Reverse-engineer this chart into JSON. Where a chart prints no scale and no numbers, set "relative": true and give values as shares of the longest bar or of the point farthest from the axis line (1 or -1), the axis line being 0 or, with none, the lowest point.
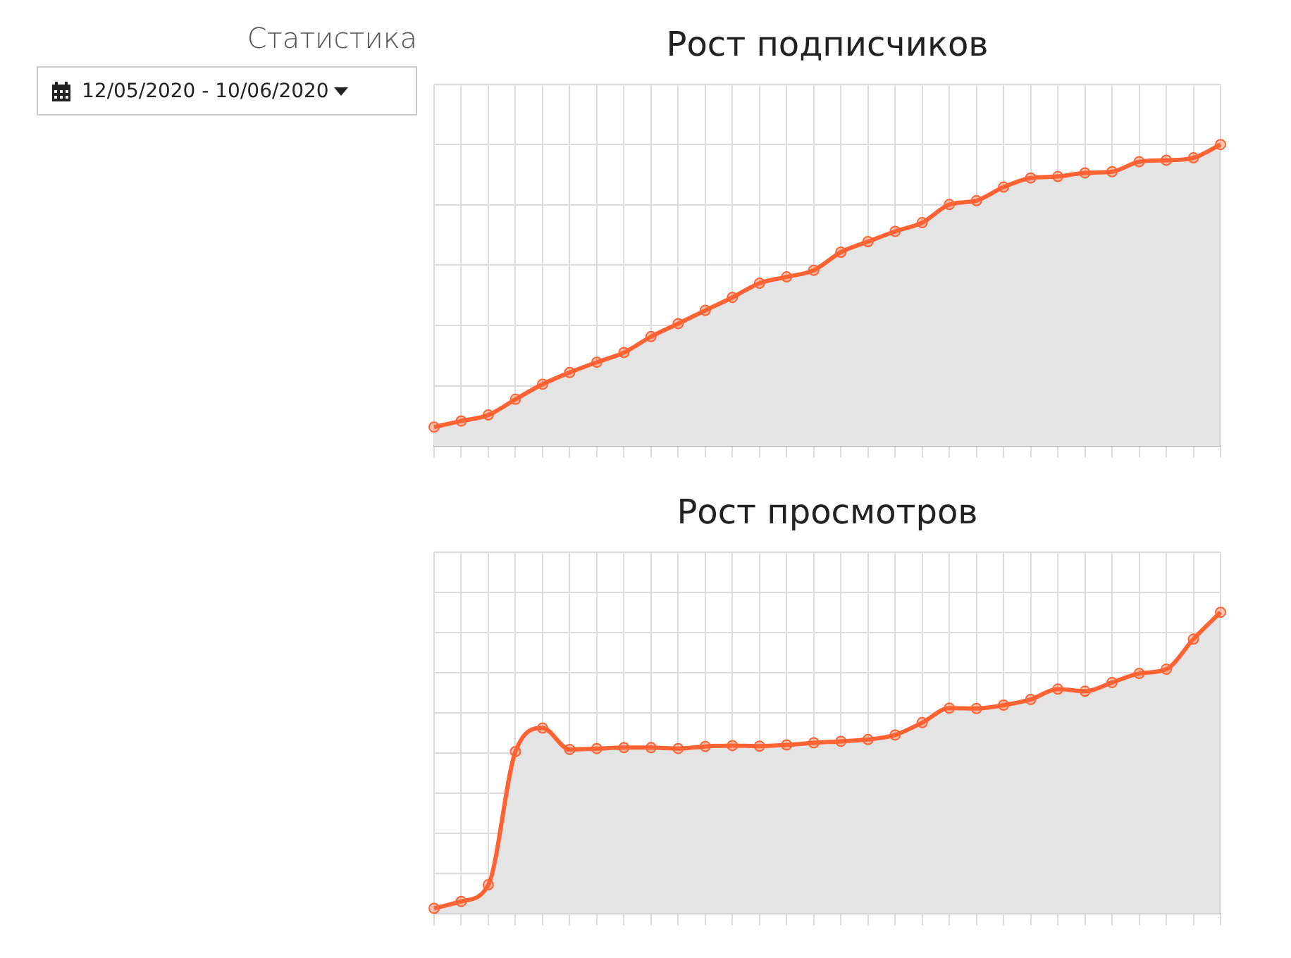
{
  "chart_data": [
    {
      "type": "other",
      "title": "Статистика",
      "annotations": [
        "12/05/2020 - 10/06/2020"
      ]
    },
    {
      "type": "area",
      "title": "Рост подписчиков",
      "relative": true,
      "grid": true,
      "marker": "circle",
      "legend": false,
      "categories": [
        null,
        null,
        null,
        null,
        null,
        null,
        null,
        null,
        null,
        null,
        null,
        null,
        null,
        null,
        null,
        null,
        null,
        null,
        null,
        null,
        null,
        null,
        null,
        null,
        null,
        null,
        null,
        null,
        null,
        null
      ],
      "series": [
        {
          "color": "#ff6333",
          "values": [
            0.063,
            0.083,
            0.103,
            0.155,
            0.205,
            0.244,
            0.278,
            0.31,
            0.363,
            0.406,
            0.45,
            0.493,
            0.54,
            0.561,
            0.583,
            0.643,
            0.678,
            0.712,
            0.741,
            0.801,
            0.814,
            0.859,
            0.889,
            0.894,
            0.906,
            0.91,
            0.943,
            0.948,
            0.956,
            1
          ]
        }
      ]
    },
    {
      "type": "area",
      "title": "Рост просмотров",
      "relative": true,
      "grid": true,
      "marker": "circle",
      "legend": false,
      "categories": [
        null,
        null,
        null,
        null,
        null,
        null,
        null,
        null,
        null,
        null,
        null,
        null,
        null,
        null,
        null,
        null,
        null,
        null,
        null,
        null,
        null,
        null,
        null,
        null,
        null,
        null,
        null,
        null,
        null,
        null
      ],
      "series": [
        {
          "color": "#ff6333",
          "values": [
            0.018,
            0.041,
            0.096,
            0.538,
            0.616,
            0.545,
            0.548,
            0.551,
            0.551,
            0.548,
            0.555,
            0.558,
            0.556,
            0.56,
            0.567,
            0.572,
            0.578,
            0.593,
            0.634,
            0.682,
            0.681,
            0.692,
            0.711,
            0.745,
            0.738,
            0.767,
            0.797,
            0.811,
            0.911,
            1
          ]
        }
      ]
    }
  ]
}
